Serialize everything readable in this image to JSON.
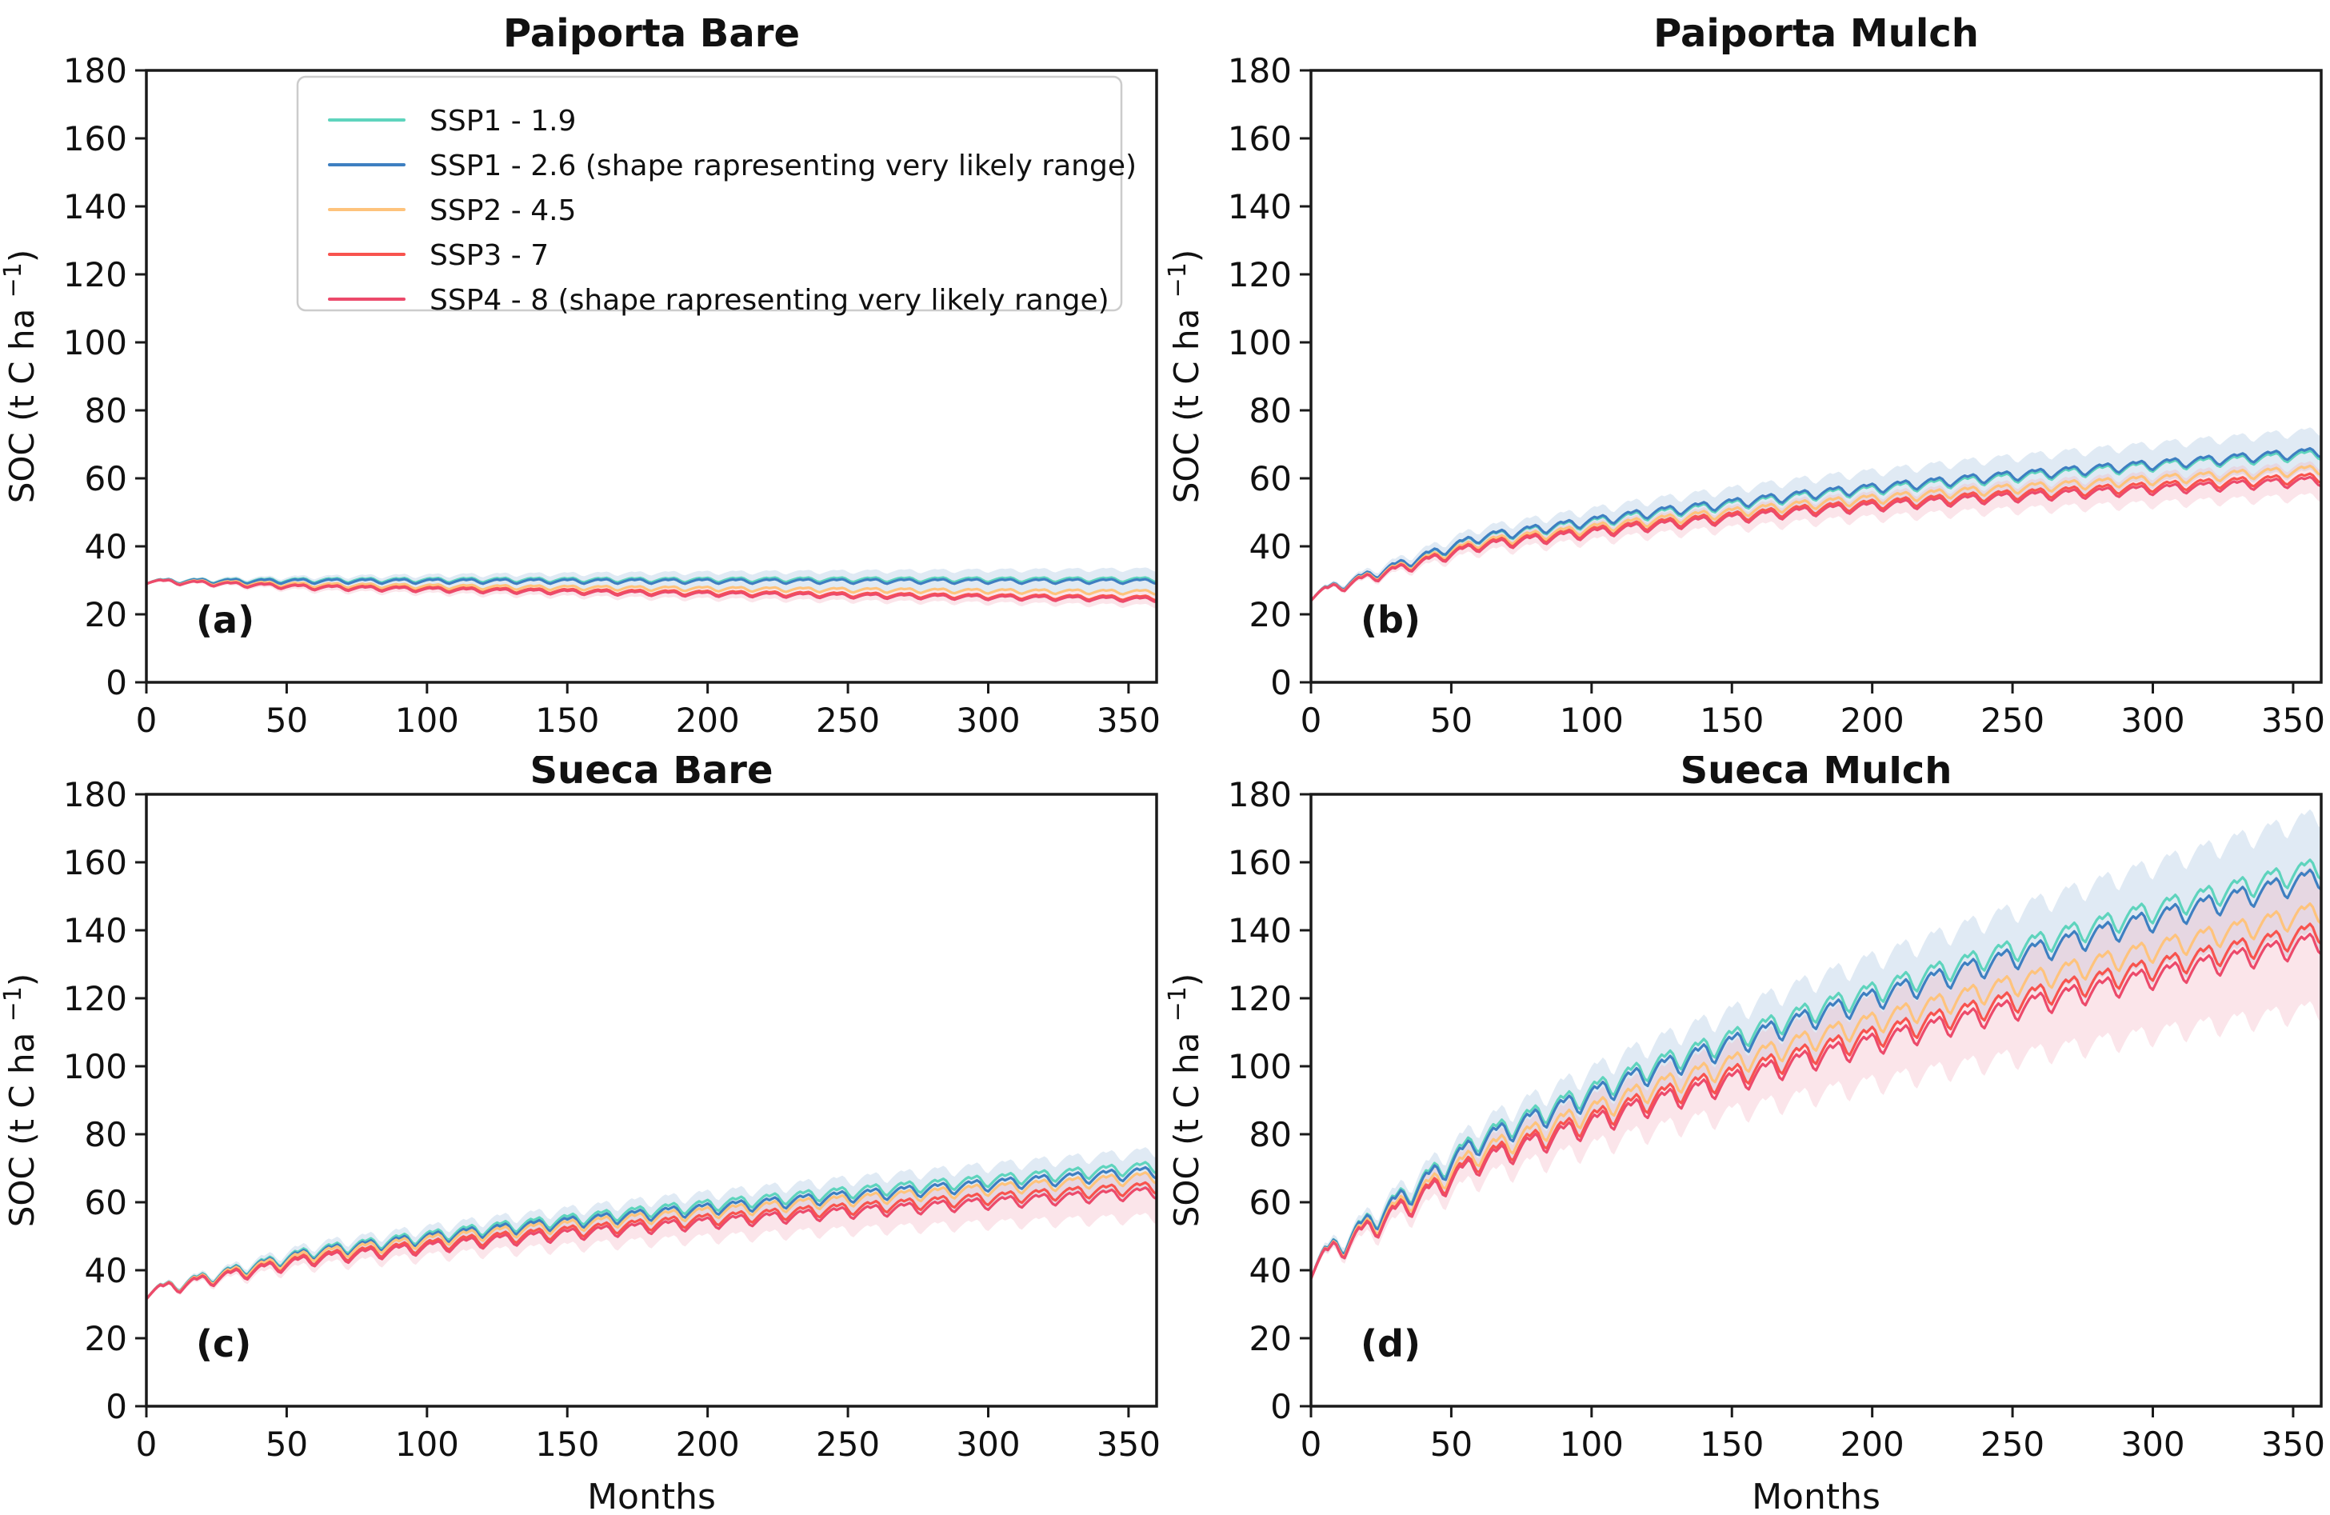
{
  "figure": {
    "ylabel_main": "SOC (t C ha ",
    "ylabel_sup": "−1",
    "ylabel_close": ")",
    "xlabel": "Months"
  },
  "colors": {
    "ssp1_19_teal": "#5ed4bd",
    "ssp1_26_blue": "#3e7fc1",
    "ssp2_45_orange": "#fec37c",
    "ssp3_7_red": "#f8534e",
    "ssp4_8_crimson": "#ec4a6b",
    "blue_band": "#9fbedd",
    "pink_band": "#f3aebf",
    "axis": "#1a1a1a",
    "legend_border": "#cccccc"
  },
  "legend": {
    "entries": [
      {
        "label": "SSP1 - 1.9",
        "color": "#5ed4bd"
      },
      {
        "label": "SSP1 - 2.6 (shape rapresenting very likely range)",
        "color": "#3e7fc1"
      },
      {
        "label": "SSP2 - 4.5",
        "color": "#fec37c"
      },
      {
        "label": "SSP3 - 7",
        "color": "#f8534e"
      },
      {
        "label": "SSP4 - 8 (shape rapresenting very likely range)",
        "color": "#ec4a6b"
      }
    ]
  },
  "chart_data": [
    {
      "type": "line",
      "panel_label": "(a)",
      "title": "Paiporta Bare",
      "row": "top",
      "show_legend": true,
      "xlabel": "",
      "ylabel": "SOC (t C ha −1)",
      "xlim": [
        0,
        360
      ],
      "ylim": [
        0,
        180
      ],
      "xticks": [
        0,
        50,
        100,
        150,
        200,
        250,
        300,
        350
      ],
      "yticks": [
        0,
        20,
        40,
        60,
        80,
        100,
        120,
        140,
        160,
        180
      ],
      "x_keypoints": [
        0,
        60,
        120,
        180,
        240,
        300,
        360
      ],
      "seasonal_amplitude": 0.6,
      "series": [
        {
          "name": "SSP1 - 1.9",
          "color": "#5ed4bd",
          "values": [
            29,
            29.3,
            29.4,
            29.4,
            29.5,
            29.5,
            29.5
          ]
        },
        {
          "name": "SSP1 - 2.6",
          "color": "#3e7fc1",
          "values": [
            29,
            29.0,
            29.0,
            29.0,
            29.0,
            29.0,
            29.0
          ]
        },
        {
          "name": "SSP2 - 4.5",
          "color": "#fec37c",
          "values": [
            29,
            27.9,
            27.3,
            26.9,
            26.5,
            26.1,
            25.8
          ]
        },
        {
          "name": "SSP3 - 7",
          "color": "#f8534e",
          "values": [
            29,
            27.3,
            26.5,
            25.8,
            25.2,
            24.6,
            24.1
          ]
        },
        {
          "name": "SSP4 - 8",
          "color": "#ec4a6b",
          "values": [
            29,
            27.1,
            26.2,
            25.4,
            24.8,
            24.2,
            23.6
          ]
        }
      ],
      "bands": [
        {
          "name": "SSP1 - 2.6 very likely range",
          "color": "#9fbedd",
          "upper": [
            29.4,
            30.3,
            30.9,
            31.4,
            31.8,
            32.2,
            32.5
          ],
          "lower": [
            28.6,
            27.7,
            27.1,
            26.6,
            26.2,
            25.8,
            25.5
          ]
        },
        {
          "name": "SSP4 - 8 very likely range",
          "color": "#f3aebf",
          "upper": [
            29.3,
            28.2,
            27.5,
            26.9,
            26.4,
            25.9,
            25.5
          ],
          "lower": [
            28.7,
            26.0,
            24.9,
            23.9,
            23.2,
            22.5,
            21.7
          ]
        }
      ]
    },
    {
      "type": "line",
      "panel_label": "(b)",
      "title": "Paiporta Mulch",
      "row": "top",
      "show_legend": false,
      "xlabel": "",
      "ylabel": "SOC (t C ha −1)",
      "xlim": [
        0,
        360
      ],
      "ylim": [
        0,
        180
      ],
      "xticks": [
        0,
        50,
        100,
        150,
        200,
        250,
        300,
        350
      ],
      "yticks": [
        0,
        20,
        40,
        60,
        80,
        100,
        120,
        140,
        160,
        180
      ],
      "x_keypoints": [
        0,
        60,
        120,
        180,
        240,
        300,
        360
      ],
      "seasonal_amplitude": 1.3,
      "series": [
        {
          "name": "SSP1 - 1.9",
          "color": "#5ed4bd",
          "values": [
            24,
            40.8,
            47.7,
            53.5,
            58.0,
            62.0,
            65.5
          ]
        },
        {
          "name": "SSP1 - 2.6",
          "color": "#3e7fc1",
          "values": [
            24,
            41.0,
            48.2,
            54.0,
            58.6,
            62.5,
            66.2
          ]
        },
        {
          "name": "SSP2 - 4.5",
          "color": "#fec37c",
          "values": [
            24,
            39.5,
            45.8,
            51.0,
            54.9,
            58.0,
            61.0
          ]
        },
        {
          "name": "SSP3 - 7",
          "color": "#f8534e",
          "values": [
            24,
            38.8,
            44.8,
            49.6,
            53.2,
            56.0,
            58.7
          ]
        },
        {
          "name": "SSP4 - 8",
          "color": "#ec4a6b",
          "values": [
            24,
            38.4,
            44.2,
            48.9,
            52.4,
            55.1,
            57.7
          ]
        }
      ],
      "bands": [
        {
          "name": "SSP1 - 2.6 very likely range",
          "color": "#9fbedd",
          "upper": [
            24.5,
            43.5,
            51.7,
            58.4,
            63.7,
            68.2,
            72.4
          ],
          "lower": [
            23.5,
            38.5,
            44.7,
            49.6,
            53.5,
            56.8,
            60.0
          ]
        },
        {
          "name": "SSP4 - 8 very likely range",
          "color": "#f3aebf",
          "upper": [
            24.4,
            40.3,
            46.9,
            52.2,
            56.2,
            59.4,
            62.4
          ],
          "lower": [
            23.6,
            36.5,
            41.5,
            45.6,
            48.6,
            50.8,
            53.0
          ]
        }
      ]
    },
    {
      "type": "line",
      "panel_label": "(c)",
      "title": "Sueca Bare",
      "row": "bottom",
      "show_legend": false,
      "xlabel": "Months",
      "ylabel": "SOC (t C ha −1)",
      "xlim": [
        0,
        360
      ],
      "ylim": [
        0,
        180
      ],
      "xticks": [
        0,
        50,
        100,
        150,
        200,
        250,
        300,
        350
      ],
      "yticks": [
        0,
        20,
        40,
        60,
        80,
        100,
        120,
        140,
        160,
        180
      ],
      "x_keypoints": [
        0,
        60,
        120,
        180,
        240,
        300,
        360
      ],
      "seasonal_amplitude": 1.6,
      "series": [
        {
          "name": "SSP1 - 1.9",
          "color": "#5ed4bd",
          "values": [
            31.5,
            43.7,
            50.2,
            55.6,
            60.3,
            64.5,
            68.5
          ]
        },
        {
          "name": "SSP1 - 2.6",
          "color": "#3e7fc1",
          "values": [
            31.5,
            43.2,
            49.5,
            54.6,
            59.1,
            63.2,
            67.0
          ]
        },
        {
          "name": "SSP2 - 4.5",
          "color": "#fec37c",
          "values": [
            31.5,
            42.7,
            48.7,
            53.6,
            58.0,
            61.9,
            65.5
          ]
        },
        {
          "name": "SSP3 - 7",
          "color": "#f8534e",
          "values": [
            31.5,
            41.7,
            47.2,
            51.7,
            55.6,
            59.2,
            62.5
          ]
        },
        {
          "name": "SSP4 - 8",
          "color": "#ec4a6b",
          "values": [
            31.5,
            41.2,
            46.4,
            50.7,
            54.5,
            57.8,
            61.0
          ]
        }
      ],
      "bands": [
        {
          "name": "SSP1 - 2.6 very likely range",
          "color": "#9fbedd",
          "upper": [
            32.0,
            45.4,
            52.6,
            58.5,
            63.7,
            68.5,
            73.0
          ],
          "lower": [
            31.0,
            41.0,
            46.4,
            50.7,
            54.5,
            57.9,
            61.0
          ]
        },
        {
          "name": "SSP4 - 8 very likely range",
          "color": "#f3aebf",
          "upper": [
            31.9,
            43.0,
            48.8,
            53.6,
            57.8,
            61.6,
            65.2
          ],
          "lower": [
            31.1,
            39.2,
            43.2,
            46.4,
            49.2,
            51.5,
            53.5
          ]
        }
      ]
    },
    {
      "type": "line",
      "panel_label": "(d)",
      "title": "Sueca Mulch",
      "row": "bottom",
      "show_legend": false,
      "xlabel": "Months",
      "ylabel": "SOC (t C ha −1)",
      "xlim": [
        0,
        360
      ],
      "ylim": [
        0,
        180
      ],
      "xticks": [
        0,
        50,
        100,
        150,
        200,
        250,
        300,
        350
      ],
      "yticks": [
        0,
        20,
        40,
        60,
        80,
        100,
        120,
        140,
        160,
        180
      ],
      "x_keypoints": [
        0,
        60,
        120,
        180,
        240,
        300,
        360
      ],
      "seasonal_amplitude": 3.0,
      "series": [
        {
          "name": "SSP1 - 1.9",
          "color": "#5ed4bd",
          "values": [
            37.5,
            74.9,
            95.7,
            112.9,
            128.2,
            142.1,
            155
          ]
        },
        {
          "name": "SSP1 - 2.6",
          "color": "#3e7fc1",
          "values": [
            37.5,
            73.9,
            94.2,
            111.0,
            125.9,
            139.4,
            152
          ]
        },
        {
          "name": "SSP2 - 4.5",
          "color": "#fec37c",
          "values": [
            37.5,
            70.7,
            89.2,
            104.6,
            118.2,
            130.5,
            142
          ]
        },
        {
          "name": "SSP3 - 7",
          "color": "#f8534e",
          "values": [
            37.5,
            68.8,
            86.3,
            100.7,
            113.5,
            125.2,
            136
          ]
        },
        {
          "name": "SSP4 - 8",
          "color": "#ec4a6b",
          "values": [
            37.5,
            67.9,
            84.8,
            98.8,
            111.2,
            122.5,
            133
          ]
        }
      ],
      "bands": [
        {
          "name": "SSP1 - 2.6 very likely range",
          "color": "#9fbedd",
          "upper": [
            38.5,
            78.9,
            102.2,
            121.5,
            138.9,
            154.9,
            170
          ],
          "lower": [
            36.5,
            68.9,
            86.2,
            100.5,
            112.9,
            123.9,
            134
          ]
        },
        {
          "name": "SSP4 - 8 very likely range",
          "color": "#f3aebf",
          "upper": [
            38.3,
            72.9,
            92.8,
            109.8,
            125.2,
            139.5,
            153
          ],
          "lower": [
            36.7,
            62.9,
            76.8,
            87.8,
            97.2,
            105.5,
            113
          ]
        }
      ]
    }
  ],
  "seasonal_pattern": [
    0,
    0.5,
    1.0,
    1.45,
    1.85,
    2.1,
    1.8,
    2.0,
    2.2,
    1.8,
    1.0,
    0.3
  ]
}
